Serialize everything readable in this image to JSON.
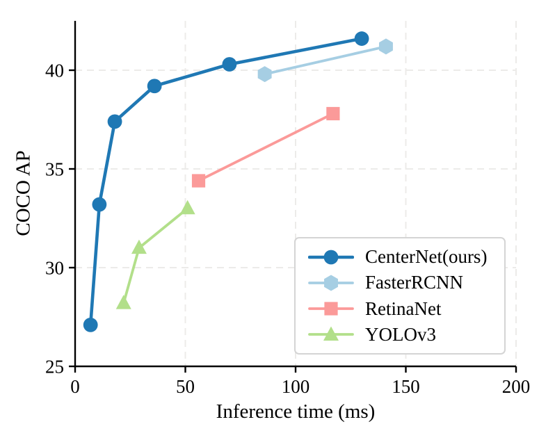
{
  "chart_data": {
    "type": "line",
    "title": "",
    "xlabel": "Inference time (ms)",
    "ylabel": "COCO AP",
    "xlim": [
      0,
      200
    ],
    "ylim": [
      25,
      42.5
    ],
    "xticks": [
      0,
      50,
      100,
      150,
      200
    ],
    "yticks": [
      25,
      30,
      35,
      40
    ],
    "grid": true,
    "grid_style": "dashed",
    "legend_position": "lower right",
    "series": [
      {
        "name": "CenterNet(ours)",
        "color": "#1f78b4",
        "marker": "circle",
        "line_width": 4.6,
        "points": [
          [
            7,
            27.1
          ],
          [
            11,
            33.2
          ],
          [
            18,
            37.4
          ],
          [
            36,
            39.2
          ],
          [
            70,
            40.3
          ],
          [
            130,
            41.6
          ]
        ]
      },
      {
        "name": "FasterRCNN",
        "color": "#a6cee3",
        "marker": "hexagon",
        "line_width": 3.8,
        "points": [
          [
            86,
            39.8
          ],
          [
            141,
            41.2
          ]
        ]
      },
      {
        "name": "RetinaNet",
        "color": "#fb9a99",
        "marker": "square",
        "line_width": 3.8,
        "points": [
          [
            56,
            34.4
          ],
          [
            117,
            37.8
          ]
        ]
      },
      {
        "name": "YOLOv3",
        "color": "#b2df8a",
        "marker": "triangle",
        "line_width": 3.8,
        "points": [
          [
            22,
            28.2
          ],
          [
            29,
            31.0
          ],
          [
            51,
            33.0
          ]
        ]
      }
    ],
    "colors": {
      "grid": "#ecebe9",
      "spine": "#000000",
      "text": "#000000",
      "legend_border": "#d4d4d4",
      "background": "#ffffff"
    }
  }
}
